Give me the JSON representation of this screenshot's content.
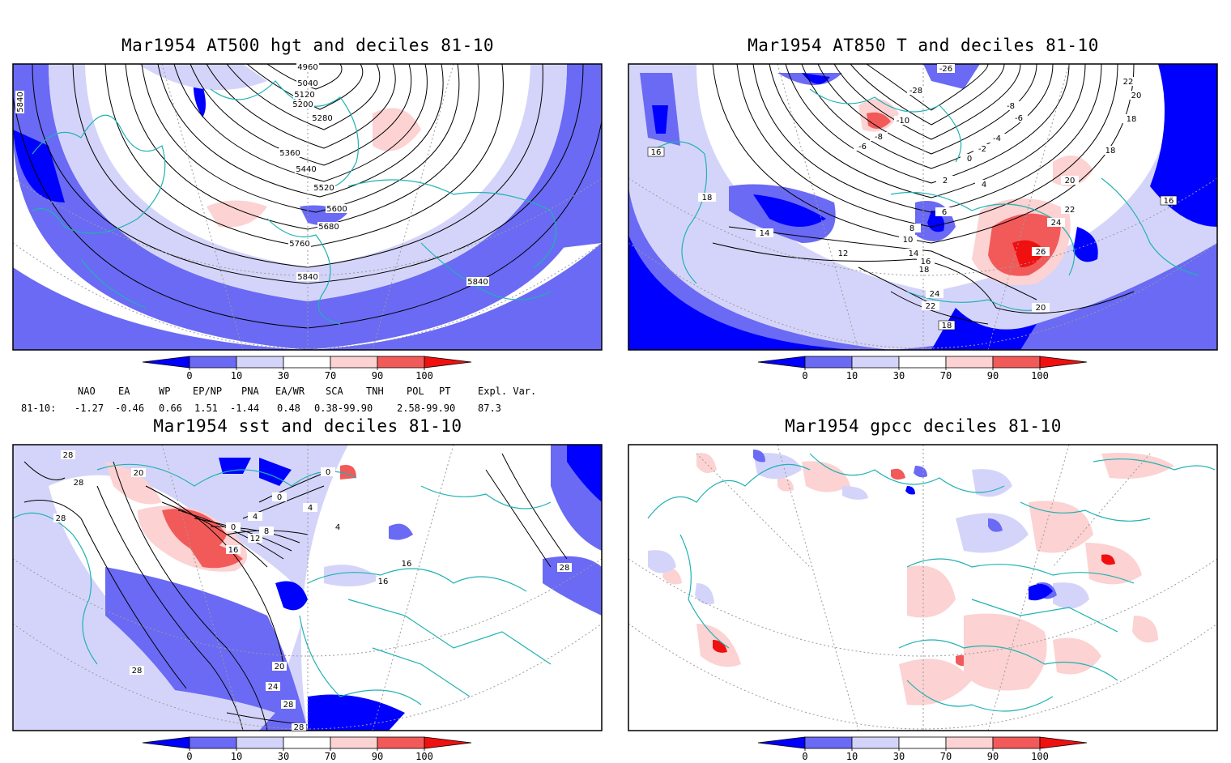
{
  "titles": {
    "tl": "Mar1954 AT500 hgt and deciles 81-10",
    "tr": "Mar1954 AT850 T and deciles 81-10",
    "bl": "Mar1954 sst and deciles 81-10",
    "br": "Mar1954 gpcc deciles 81-10"
  },
  "colorbar": {
    "ticks": [
      "0",
      "10",
      "30",
      "70",
      "90",
      "100"
    ],
    "colors": [
      "#0000ff",
      "#6a6af5",
      "#d4d4fa",
      "#ffffff",
      "#fcd2d2",
      "#f25a5a",
      "#f01010"
    ]
  },
  "indices": {
    "row_label": "81-10:",
    "names": [
      "NAO",
      "EA",
      "WP",
      "EP/NP",
      "PNA",
      "EA/WR",
      "SCA",
      "TNH",
      "POL",
      "PT",
      "Expl. Var."
    ],
    "values": [
      "-1.27",
      "-0.46",
      "0.66",
      "1.51",
      "-1.44",
      "0.48",
      "0.38-99.90",
      "",
      "2.58-99.90",
      "",
      "87.3"
    ]
  },
  "contour_labels": {
    "tl": [
      "4960",
      "5040",
      "5120",
      "5200",
      "5280",
      "5360",
      "5440",
      "5520",
      "5600",
      "5680",
      "5760",
      "5840",
      "5840",
      "5840"
    ],
    "tr": [
      "-26",
      "-28",
      "-8",
      "-6",
      "-10",
      "-8",
      "-6",
      "-4",
      "-2",
      "0",
      "2",
      "4",
      "6",
      "8",
      "10",
      "12",
      "14",
      "16",
      "18",
      "20",
      "22",
      "24",
      "26",
      "22",
      "20",
      "18",
      "18",
      "16",
      "16",
      "18",
      "22",
      "24",
      "20",
      "18",
      "14"
    ],
    "bl": [
      "28",
      "20",
      "28",
      "28",
      "0",
      "0",
      "4",
      "8",
      "12",
      "16",
      "4",
      "0",
      "4",
      "16",
      "16",
      "20",
      "24",
      "28",
      "28",
      "28",
      "28"
    ]
  }
}
